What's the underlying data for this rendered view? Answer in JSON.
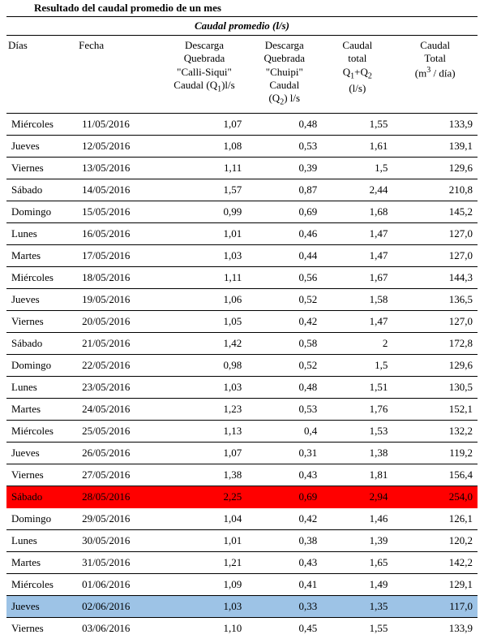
{
  "title": "Resultado del caudal promedio de un mes",
  "caption": "Caudal promedio (l/s)",
  "headers": {
    "dias": "Días",
    "fecha": "Fecha",
    "q1_l1": "Descarga",
    "q1_l2": "Quebrada",
    "q1_l3": "\"Calli-Siqui\"",
    "q1_l4a": "Caudal  (Q",
    "q1_l4b": ")l/s",
    "q2_l1": "Descarga",
    "q2_l2": "Quebrada",
    "q2_l3": "\"Chuipi\"",
    "q2_l4": "Caudal",
    "q2_l5a": "(Q",
    "q2_l5b": ") l/s",
    "qt_l1": "Caudal",
    "qt_l2": "total",
    "qt_l3a": "Q",
    "qt_l3b": "+Q",
    "qt_l4": "(l/s)",
    "m3_l1": "Caudal",
    "m3_l2": "Total",
    "m3_l3a": "(m",
    "m3_l3b": " / día)"
  },
  "highlight": {
    "max_index": 17,
    "min_index": 22
  },
  "rows": [
    {
      "dias": "Miércoles",
      "fecha": "11/05/2016",
      "q1": "1,07",
      "q2": "0,48",
      "qt": "1,55",
      "m3": "133,9"
    },
    {
      "dias": "Jueves",
      "fecha": "12/05/2016",
      "q1": "1,08",
      "q2": "0,53",
      "qt": "1,61",
      "m3": "139,1"
    },
    {
      "dias": "Viernes",
      "fecha": "13/05/2016",
      "q1": "1,11",
      "q2": "0,39",
      "qt": "1,5",
      "m3": "129,6"
    },
    {
      "dias": "Sábado",
      "fecha": "14/05/2016",
      "q1": "1,57",
      "q2": "0,87",
      "qt": "2,44",
      "m3": "210,8"
    },
    {
      "dias": "Domingo",
      "fecha": "15/05/2016",
      "q1": "0,99",
      "q2": "0,69",
      "qt": "1,68",
      "m3": "145,2"
    },
    {
      "dias": "Lunes",
      "fecha": "16/05/2016",
      "q1": "1,01",
      "q2": "0,46",
      "qt": "1,47",
      "m3": "127,0"
    },
    {
      "dias": "Martes",
      "fecha": "17/05/2016",
      "q1": "1,03",
      "q2": "0,44",
      "qt": "1,47",
      "m3": "127,0"
    },
    {
      "dias": "Miércoles",
      "fecha": "18/05/2016",
      "q1": "1,11",
      "q2": "0,56",
      "qt": "1,67",
      "m3": "144,3"
    },
    {
      "dias": "Jueves",
      "fecha": "19/05/2016",
      "q1": "1,06",
      "q2": "0,52",
      "qt": "1,58",
      "m3": "136,5"
    },
    {
      "dias": "Viernes",
      "fecha": "20/05/2016",
      "q1": "1,05",
      "q2": "0,42",
      "qt": "1,47",
      "m3": "127,0"
    },
    {
      "dias": "Sábado",
      "fecha": "21/05/2016",
      "q1": "1,42",
      "q2": "0,58",
      "qt": "2",
      "m3": "172,8"
    },
    {
      "dias": "Domingo",
      "fecha": "22/05/2016",
      "q1": "0,98",
      "q2": "0,52",
      "qt": "1,5",
      "m3": "129,6"
    },
    {
      "dias": "Lunes",
      "fecha": "23/05/2016",
      "q1": "1,03",
      "q2": "0,48",
      "qt": "1,51",
      "m3": "130,5"
    },
    {
      "dias": "Martes",
      "fecha": "24/05/2016",
      "q1": "1,23",
      "q2": "0,53",
      "qt": "1,76",
      "m3": "152,1"
    },
    {
      "dias": "Miércoles",
      "fecha": "25/05/2016",
      "q1": "1,13",
      "q2": "0,4",
      "qt": "1,53",
      "m3": "132,2"
    },
    {
      "dias": "Jueves",
      "fecha": "26/05/2016",
      "q1": "1,07",
      "q2": "0,31",
      "qt": "1,38",
      "m3": "119,2"
    },
    {
      "dias": "Viernes",
      "fecha": "27/05/2016",
      "q1": "1,38",
      "q2": "0,43",
      "qt": "1,81",
      "m3": "156,4"
    },
    {
      "dias": "Sábado",
      "fecha": "28/05/2016",
      "q1": "2,25",
      "q2": "0,69",
      "qt": "2,94",
      "m3": "254,0"
    },
    {
      "dias": "Domingo",
      "fecha": "29/05/2016",
      "q1": "1,04",
      "q2": "0,42",
      "qt": "1,46",
      "m3": "126,1"
    },
    {
      "dias": "Lunes",
      "fecha": "30/05/2016",
      "q1": "1,01",
      "q2": "0,38",
      "qt": "1,39",
      "m3": "120,2"
    },
    {
      "dias": "Martes",
      "fecha": "31/05/2016",
      "q1": "1,21",
      "q2": "0,43",
      "qt": "1,65",
      "m3": "142,2"
    },
    {
      "dias": "Miércoles",
      "fecha": "01/06/2016",
      "q1": "1,09",
      "q2": "0,41",
      "qt": "1,49",
      "m3": "129,1"
    },
    {
      "dias": "Jueves",
      "fecha": "02/06/2016",
      "q1": "1,03",
      "q2": "0,33",
      "qt": "1,35",
      "m3": "117,0"
    },
    {
      "dias": "Viernes",
      "fecha": "03/06/2016",
      "q1": "1,10",
      "q2": "0,45",
      "qt": "1,55",
      "m3": "133,9"
    }
  ]
}
